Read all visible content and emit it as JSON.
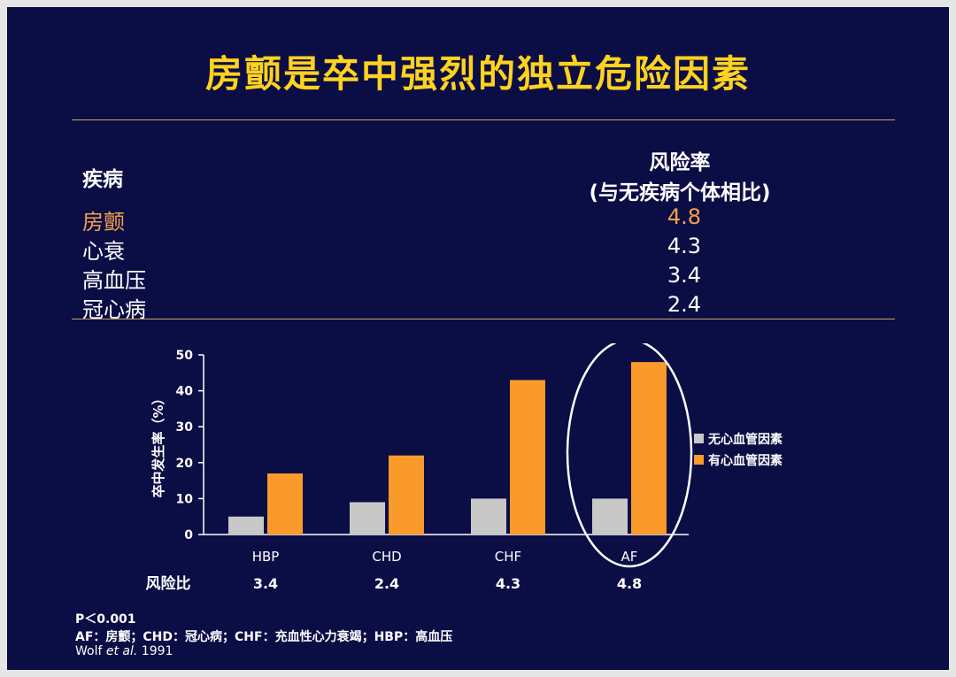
{
  "title": "房颤是卒中强烈的独立危险因素",
  "table": {
    "col1_header": "疾病",
    "col2_header_line1": "风险率",
    "col2_header_line2": "(与无疾病个体相比)",
    "highlight_color": "#f5a14a",
    "rows": [
      {
        "disease": "房颤",
        "ratio": "4.8"
      },
      {
        "disease": "心衰",
        "ratio": "4.3"
      },
      {
        "disease": "高血压",
        "ratio": "3.4"
      },
      {
        "disease": "冠心病",
        "ratio": "2.4"
      }
    ]
  },
  "chart_data": {
    "type": "bar",
    "categories": [
      "HBP",
      "CHD",
      "CHF",
      "AF"
    ],
    "series": [
      {
        "name": "无心血管因素",
        "color": "#c8c8c8",
        "values": [
          5,
          9,
          10,
          10
        ]
      },
      {
        "name": "有心血管因素",
        "color": "#f99a2b",
        "values": [
          17,
          22,
          43,
          48
        ]
      }
    ],
    "ylabel": "卒中发生率（%）",
    "ylim": [
      0,
      50
    ],
    "yticks": [
      0,
      10,
      20,
      30,
      40,
      50
    ],
    "legend_position": "right",
    "highlight_category": "AF",
    "risk_ratio_label": "风险比",
    "risk_ratios": [
      "3.4",
      "2.4",
      "4.3",
      "4.8"
    ]
  },
  "footnotes": {
    "p_value": "P＜0.001",
    "abbreviations": "AF：房颤；CHD：冠心病；CHF：充血性心力衰竭；HBP：高血压",
    "citation_author": "Wolf ",
    "citation_etal": "et al.",
    "citation_year": " 1991"
  }
}
